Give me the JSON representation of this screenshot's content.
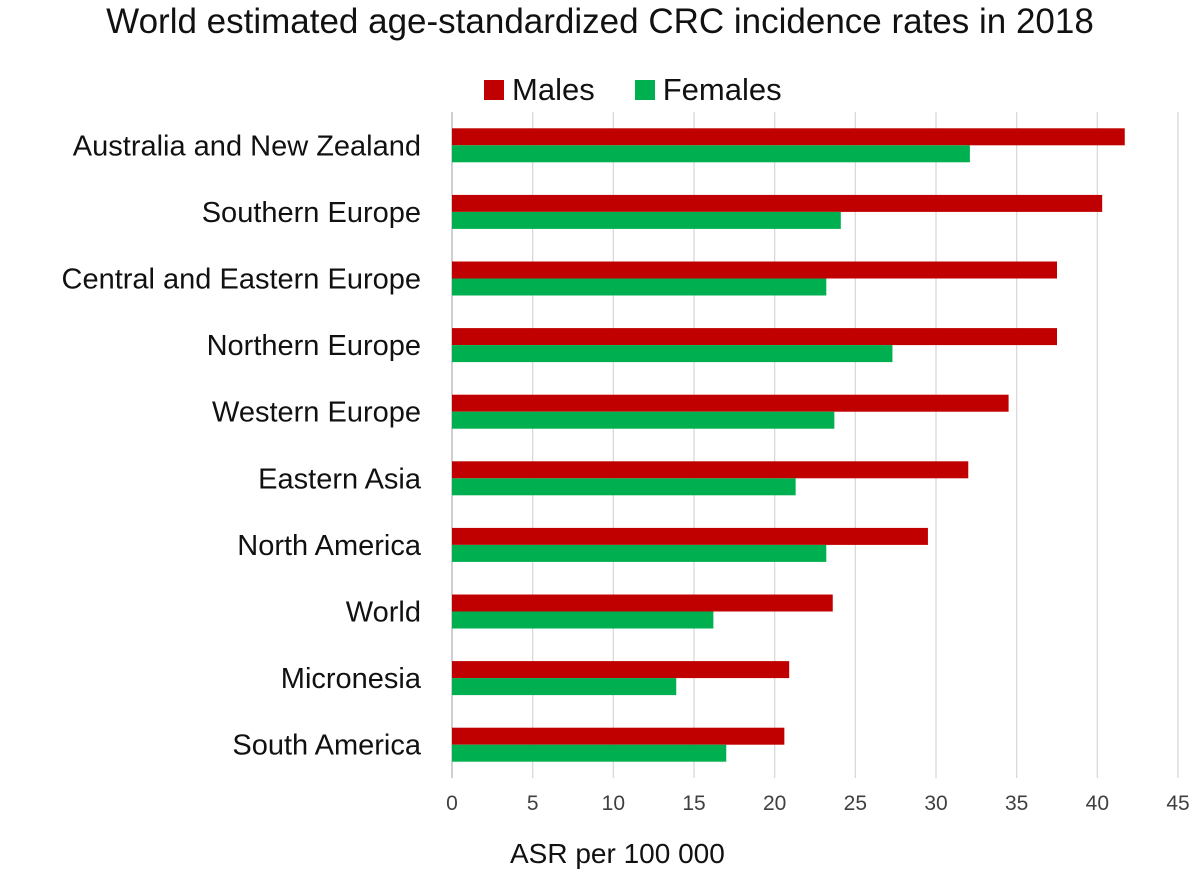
{
  "chart_data": {
    "type": "bar",
    "orientation": "horizontal",
    "title": "World estimated age-standardized CRC incidence rates in 2018",
    "xlabel": "ASR per 100 000",
    "ylabel": "",
    "xlim": [
      0,
      45
    ],
    "xticks": [
      "0",
      "5",
      "10",
      "15",
      "20",
      "25",
      "30",
      "35",
      "40",
      "45"
    ],
    "grid": true,
    "legend_position": "top",
    "categories": [
      "Australia and New Zealand",
      "Southern Europe",
      "Central and Eastern Europe",
      "Northern Europe",
      "Western Europe",
      "Eastern Asia",
      "North America",
      "World",
      "Micronesia",
      "South America"
    ],
    "series": [
      {
        "name": "Males",
        "color": "#c00000",
        "values": [
          41.7,
          40.3,
          37.5,
          37.5,
          34.5,
          32.0,
          29.5,
          23.6,
          20.9,
          20.6
        ]
      },
      {
        "name": "Females",
        "color": "#00b050",
        "values": [
          32.1,
          24.1,
          23.2,
          27.3,
          23.7,
          21.3,
          23.2,
          16.2,
          13.9,
          17.0
        ]
      }
    ]
  }
}
